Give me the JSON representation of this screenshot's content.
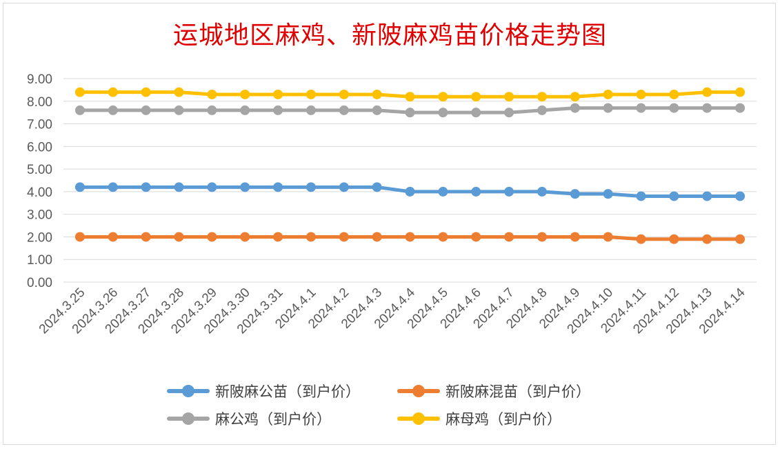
{
  "chart_data": {
    "type": "line",
    "title": "运城地区麻鸡、新陂麻鸡苗价格走势图",
    "categories": [
      "2024.3.25",
      "2024.3.26",
      "2024.3.27",
      "2024.3.28",
      "2024.3.29",
      "2024.3.30",
      "2024.3.31",
      "2024.4.1",
      "2024.4.2",
      "2024.4.3",
      "2024.4.4",
      "2024.4.5",
      "2024.4.6",
      "2024.4.7",
      "2024.4.8",
      "2024.4.9",
      "2024.4.10",
      "2024.4.11",
      "2024.4.12",
      "2024.4.13",
      "2024.4.14"
    ],
    "yticks": [
      "0.00",
      "1.00",
      "2.00",
      "3.00",
      "4.00",
      "5.00",
      "6.00",
      "7.00",
      "8.00",
      "9.00"
    ],
    "ylim": [
      0,
      9
    ],
    "grid": true,
    "legend_position": "bottom",
    "series": [
      {
        "name": "新陂麻公苗（到户价）",
        "color": "#5b9bd5",
        "values": [
          4.2,
          4.2,
          4.2,
          4.2,
          4.2,
          4.2,
          4.2,
          4.2,
          4.2,
          4.2,
          4.0,
          4.0,
          4.0,
          4.0,
          4.0,
          3.9,
          3.9,
          3.8,
          3.8,
          3.8,
          3.8
        ]
      },
      {
        "name": "新陂麻混苗（到户价）",
        "color": "#ed7d31",
        "values": [
          2.0,
          2.0,
          2.0,
          2.0,
          2.0,
          2.0,
          2.0,
          2.0,
          2.0,
          2.0,
          2.0,
          2.0,
          2.0,
          2.0,
          2.0,
          2.0,
          2.0,
          1.9,
          1.9,
          1.9,
          1.9
        ]
      },
      {
        "name": "麻公鸡（到户价）",
        "color": "#a5a5a5",
        "values": [
          7.6,
          7.6,
          7.6,
          7.6,
          7.6,
          7.6,
          7.6,
          7.6,
          7.6,
          7.6,
          7.5,
          7.5,
          7.5,
          7.5,
          7.6,
          7.7,
          7.7,
          7.7,
          7.7,
          7.7,
          7.7
        ]
      },
      {
        "name": "麻母鸡（到户价）",
        "color": "#ffc000",
        "values": [
          8.4,
          8.4,
          8.4,
          8.4,
          8.3,
          8.3,
          8.3,
          8.3,
          8.3,
          8.3,
          8.2,
          8.2,
          8.2,
          8.2,
          8.2,
          8.2,
          8.3,
          8.3,
          8.3,
          8.4,
          8.4
        ]
      }
    ]
  },
  "colors": {
    "title": "#e00000",
    "gridline": "#d9d9d9",
    "axis_text": "#595959",
    "legend_text": "#404040"
  }
}
